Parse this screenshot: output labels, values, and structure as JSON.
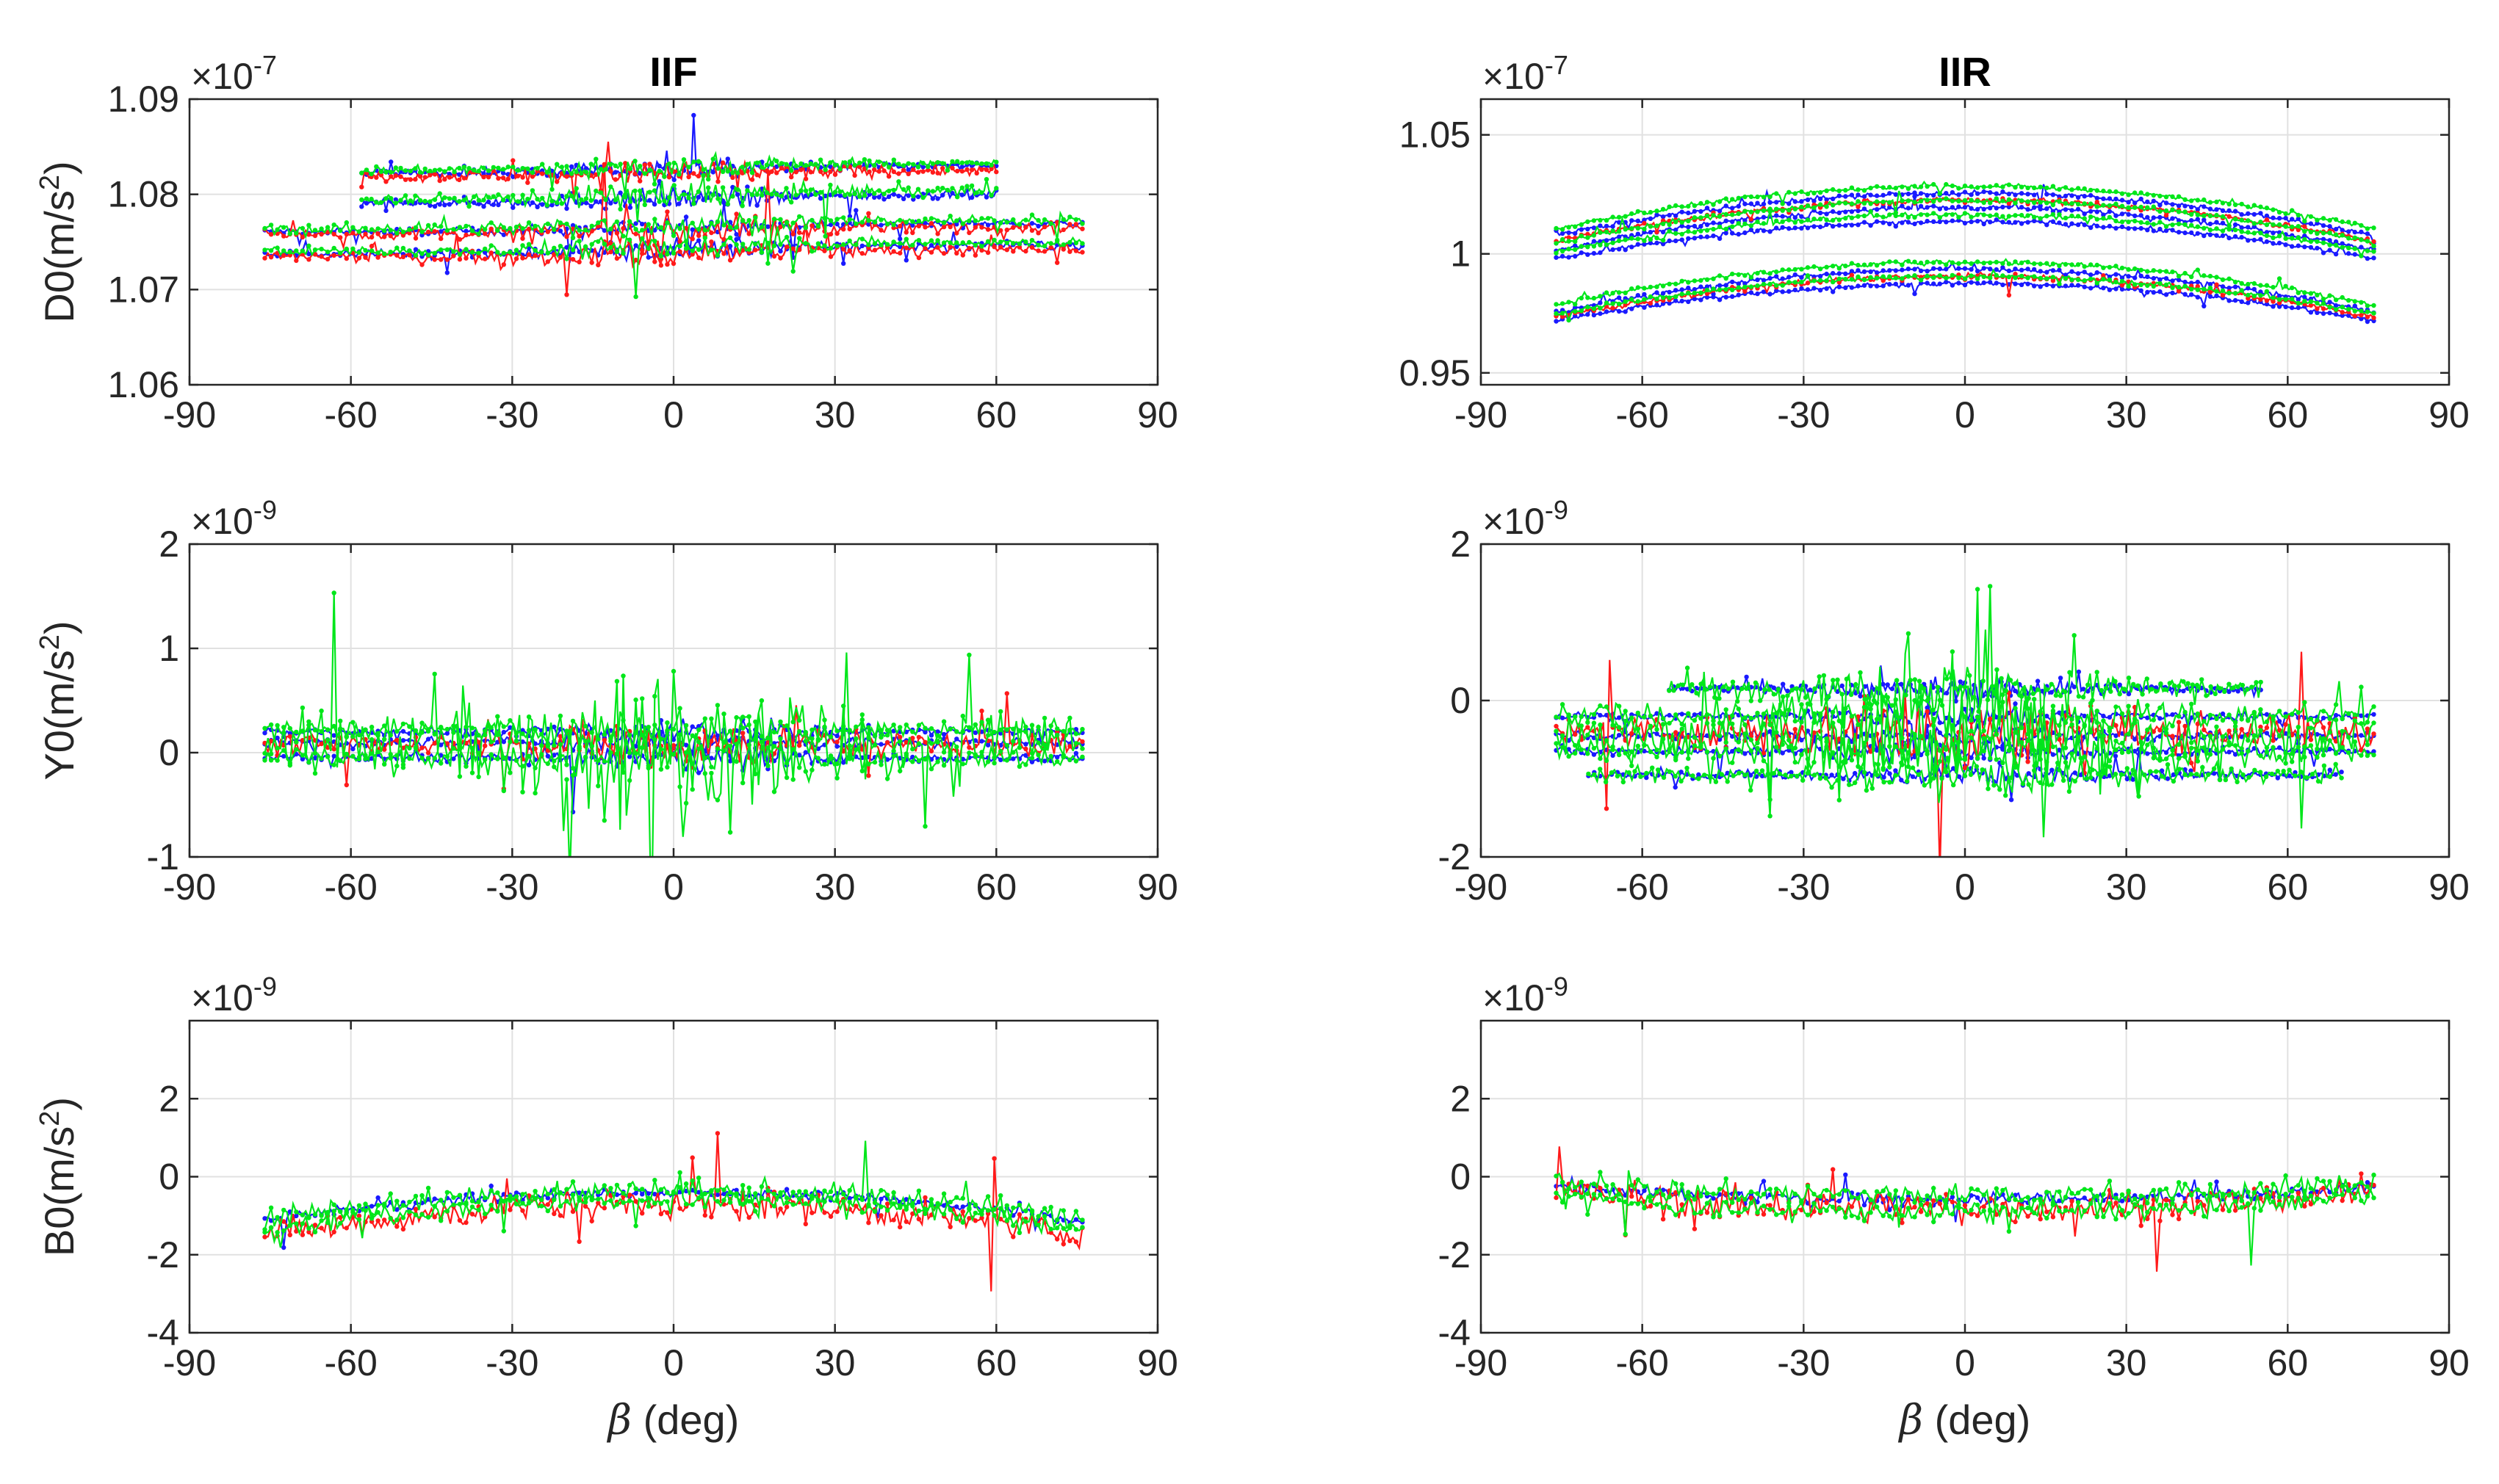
{
  "chart_data": [
    {
      "type": "line",
      "panel": "top-left",
      "title": "IIF",
      "ylabel": "D0(m/s",
      "ylabel_sup": "2",
      "ylabel_close": ")",
      "xlabel": "",
      "exponent": {
        "base": "×10",
        "power": "-7"
      },
      "xlim": [
        -90,
        90
      ],
      "ylim": [
        1.06,
        1.09
      ],
      "xticks": [
        -90,
        -60,
        -30,
        0,
        30,
        60,
        90
      ],
      "xtick_labels": [
        "-90",
        "-60",
        "-30",
        "0",
        "30",
        "60",
        "90"
      ],
      "yticks": [
        1.06,
        1.07,
        1.08,
        1.09
      ],
      "ytick_labels": [
        "1.06",
        "1.07",
        "1.08",
        "1.09"
      ],
      "grid": true,
      "series": [
        {
          "name": "blue",
          "color": "#1a1aff",
          "pattern": "bands",
          "bands": [
            {
              "x": [
                -76,
                76
              ],
              "c": 1.0765,
              "a": 0.0006,
              "noise": 0.0004
            },
            {
              "x": [
                -58,
                60
              ],
              "c": 1.0826,
              "a": 0.0005,
              "noise": 0.0004
            },
            {
              "x": [
                -58,
                60
              ],
              "c": 1.0795,
              "a": 0.0006,
              "noise": 0.0005
            },
            {
              "x": [
                -76,
                76
              ],
              "c": 1.0742,
              "a": 0.0006,
              "noise": 0.0005
            }
          ]
        },
        {
          "name": "red",
          "color": "#ff1a1a",
          "pattern": "bands",
          "bands": [
            {
              "x": [
                -76,
                76
              ],
              "c": 1.0762,
              "a": 0.0005,
              "noise": 0.0007
            },
            {
              "x": [
                -58,
                60
              ],
              "c": 1.0822,
              "a": 0.0004,
              "noise": 0.0006
            },
            {
              "x": [
                -76,
                76
              ],
              "c": 1.0738,
              "a": 0.0005,
              "noise": 0.0007
            }
          ]
        },
        {
          "name": "green",
          "color": "#00e61a",
          "pattern": "bands",
          "bands": [
            {
              "x": [
                -76,
                76
              ],
              "c": 1.0768,
              "a": 0.0006,
              "noise": 0.0006
            },
            {
              "x": [
                -58,
                60
              ],
              "c": 1.0829,
              "a": 0.0005,
              "noise": 0.0005
            },
            {
              "x": [
                -58,
                60
              ],
              "c": 1.0799,
              "a": 0.0006,
              "noise": 0.0006
            },
            {
              "x": [
                -76,
                76
              ],
              "c": 1.0745,
              "a": 0.0006,
              "noise": 0.0006
            }
          ]
        }
      ]
    },
    {
      "type": "line",
      "panel": "top-right",
      "title": "IIR",
      "ylabel": "",
      "ylabel_sup": "",
      "ylabel_close": "",
      "xlabel": "",
      "exponent": {
        "base": "×10",
        "power": "-7"
      },
      "xlim": [
        -90,
        90
      ],
      "ylim": [
        0.945,
        1.065
      ],
      "xticks": [
        -90,
        -60,
        -30,
        0,
        30,
        60,
        90
      ],
      "xtick_labels": [
        "-90",
        "-60",
        "-30",
        "0",
        "30",
        "60",
        "90"
      ],
      "yticks": [
        0.95,
        1.0,
        1.05
      ],
      "ytick_labels": [
        "0.95",
        "1",
        "1.05"
      ],
      "grid": true,
      "series": [
        {
          "name": "blue",
          "color": "#1a1aff",
          "pattern": "arcs",
          "bands": [
            {
              "x": [
                -76,
                76
              ],
              "c": 1.0255,
              "a": -0.025,
              "noise": 0.0012
            },
            {
              "x": [
                -76,
                76
              ],
              "c": 1.0195,
              "a": -0.025,
              "noise": 0.0012
            },
            {
              "x": [
                -76,
                76
              ],
              "c": 1.0135,
              "a": -0.022,
              "noise": 0.0012
            },
            {
              "x": [
                -76,
                76
              ],
              "c": 0.9935,
              "a": -0.025,
              "noise": 0.0012
            },
            {
              "x": [
                -76,
                76
              ],
              "c": 0.9875,
              "a": -0.022,
              "noise": 0.0012
            }
          ]
        },
        {
          "name": "red",
          "color": "#ff1a1a",
          "pattern": "arcs",
          "bands": [
            {
              "x": [
                -76,
                76
              ],
              "c": 1.0225,
              "a": -0.024,
              "noise": 0.0015
            },
            {
              "x": [
                -76,
                76
              ],
              "c": 0.9905,
              "a": -0.024,
              "noise": 0.0015
            }
          ]
        },
        {
          "name": "green",
          "color": "#00e61a",
          "pattern": "arcs",
          "bands": [
            {
              "x": [
                -76,
                76
              ],
              "c": 1.0285,
              "a": -0.025,
              "noise": 0.0012
            },
            {
              "x": [
                -76,
                76
              ],
              "c": 1.0225,
              "a": -0.025,
              "noise": 0.0012
            },
            {
              "x": [
                -76,
                76
              ],
              "c": 1.0165,
              "a": -0.022,
              "noise": 0.0012
            },
            {
              "x": [
                -76,
                76
              ],
              "c": 0.9965,
              "a": -0.025,
              "noise": 0.0012
            },
            {
              "x": [
                -76,
                76
              ],
              "c": 0.9905,
              "a": -0.022,
              "noise": 0.0012
            }
          ]
        }
      ]
    },
    {
      "type": "line",
      "panel": "middle-left",
      "title": "",
      "ylabel": "Y0(m/s",
      "ylabel_sup": "2",
      "ylabel_close": ")",
      "xlabel": "",
      "exponent": {
        "base": "×10",
        "power": "-9"
      },
      "xlim": [
        -90,
        90
      ],
      "ylim": [
        -1,
        2
      ],
      "xticks": [
        -90,
        -60,
        -30,
        0,
        30,
        60,
        90
      ],
      "xtick_labels": [
        "-90",
        "-60",
        "-30",
        "0",
        "30",
        "60",
        "90"
      ],
      "yticks": [
        -1,
        0,
        1,
        2
      ],
      "ytick_labels": [
        "-1",
        "0",
        "1",
        "2"
      ],
      "grid": true,
      "series": [
        {
          "name": "blue",
          "color": "#1a1aff",
          "pattern": "noise",
          "bands": [
            {
              "x": [
                -76,
                76
              ],
              "c": 0.2,
              "a": 0.0,
              "noise": 0.05
            },
            {
              "x": [
                -76,
                76
              ],
              "c": 0.1,
              "a": 0.0,
              "noise": 0.05
            },
            {
              "x": [
                -76,
                76
              ],
              "c": -0.05,
              "a": 0.0,
              "noise": 0.05
            }
          ]
        },
        {
          "name": "red",
          "color": "#ff1a1a",
          "pattern": "noise",
          "bands": [
            {
              "x": [
                -76,
                76
              ],
              "c": 0.08,
              "a": 0.05,
              "noise": 0.12
            }
          ]
        },
        {
          "name": "green",
          "color": "#00e61a",
          "pattern": "noise",
          "bands": [
            {
              "x": [
                -76,
                76
              ],
              "c": 0.22,
              "a": 0.0,
              "noise": 0.1
            },
            {
              "x": [
                -76,
                76
              ],
              "c": 0.1,
              "a": 0.1,
              "noise": 0.35
            },
            {
              "x": [
                -76,
                76
              ],
              "c": -0.05,
              "a": 0.0,
              "noise": 0.12
            }
          ]
        }
      ]
    },
    {
      "type": "line",
      "panel": "middle-right",
      "title": "",
      "ylabel": "",
      "ylabel_sup": "",
      "ylabel_close": "",
      "xlabel": "",
      "exponent": {
        "base": "×10",
        "power": "-9"
      },
      "xlim": [
        -90,
        90
      ],
      "ylim": [
        -2,
        2
      ],
      "xticks": [
        -90,
        -60,
        -30,
        0,
        30,
        60,
        90
      ],
      "xtick_labels": [
        "-90",
        "-60",
        "-30",
        "0",
        "30",
        "60",
        "90"
      ],
      "yticks": [
        -2,
        0,
        2
      ],
      "ytick_labels": [
        "-2",
        "0",
        "2"
      ],
      "grid": true,
      "series": [
        {
          "name": "blue",
          "color": "#1a1aff",
          "pattern": "noise",
          "bands": [
            {
              "x": [
                -55,
                55
              ],
              "c": 0.15,
              "a": 0.0,
              "noise": 0.06
            },
            {
              "x": [
                -76,
                76
              ],
              "c": -0.2,
              "a": 0.0,
              "noise": 0.06
            },
            {
              "x": [
                -76,
                76
              ],
              "c": -0.45,
              "a": 0.0,
              "noise": 0.06
            },
            {
              "x": [
                -76,
                76
              ],
              "c": -0.65,
              "a": 0.0,
              "noise": 0.06
            },
            {
              "x": [
                -70,
                70
              ],
              "c": -0.95,
              "a": 0.0,
              "noise": 0.06
            }
          ]
        },
        {
          "name": "red",
          "color": "#ff1a1a",
          "pattern": "noise",
          "bands": [
            {
              "x": [
                -76,
                76
              ],
              "c": -0.4,
              "a": 0.1,
              "noise": 0.25
            }
          ]
        },
        {
          "name": "green",
          "color": "#00e61a",
          "pattern": "noise",
          "bands": [
            {
              "x": [
                -55,
                55
              ],
              "c": 0.15,
              "a": 0.0,
              "noise": 0.15
            },
            {
              "x": [
                -76,
                76
              ],
              "c": -0.2,
              "a": 0.0,
              "noise": 0.2
            },
            {
              "x": [
                -76,
                76
              ],
              "c": -0.45,
              "a": 0.1,
              "noise": 0.35
            },
            {
              "x": [
                -76,
                76
              ],
              "c": -0.65,
              "a": 0.0,
              "noise": 0.2
            },
            {
              "x": [
                -70,
                70
              ],
              "c": -0.95,
              "a": 0.0,
              "noise": 0.12
            }
          ]
        }
      ]
    },
    {
      "type": "line",
      "panel": "bottom-left",
      "title": "",
      "ylabel": "B0(m/s",
      "ylabel_sup": "2",
      "ylabel_close": ")",
      "xlabel": "(deg)",
      "xlabel_symbol": "β",
      "exponent": {
        "base": "×10",
        "power": "-9"
      },
      "xlim": [
        -90,
        90
      ],
      "ylim": [
        -4,
        4
      ],
      "xticks": [
        -90,
        -60,
        -30,
        0,
        30,
        60,
        90
      ],
      "xtick_labels": [
        "-90",
        "-60",
        "-30",
        "0",
        "30",
        "60",
        "90"
      ],
      "yticks": [
        -4,
        -2,
        0,
        2
      ],
      "ytick_labels": [
        "-4",
        "-2",
        "0",
        "2"
      ],
      "grid": true,
      "series": [
        {
          "name": "blue",
          "color": "#1a1aff",
          "pattern": "arcs",
          "bands": [
            {
              "x": [
                -76,
                76
              ],
              "c": -0.4,
              "a": -1.0,
              "noise": 0.15
            }
          ]
        },
        {
          "name": "red",
          "color": "#ff1a1a",
          "pattern": "arcs",
          "bands": [
            {
              "x": [
                -76,
                76
              ],
              "c": -0.7,
              "a": -1.1,
              "noise": 0.45
            }
          ]
        },
        {
          "name": "green",
          "color": "#00e61a",
          "pattern": "arcs",
          "bands": [
            {
              "x": [
                -76,
                76
              ],
              "c": -0.35,
              "a": -1.0,
              "noise": 0.35
            },
            {
              "x": [
                -76,
                76
              ],
              "c": -0.6,
              "a": -1.0,
              "noise": 0.3
            }
          ]
        }
      ]
    },
    {
      "type": "line",
      "panel": "bottom-right",
      "title": "",
      "ylabel": "",
      "ylabel_sup": "",
      "ylabel_close": "",
      "xlabel": "(deg)",
      "xlabel_symbol": "β",
      "exponent": {
        "base": "×10",
        "power": "-9"
      },
      "xlim": [
        -90,
        90
      ],
      "ylim": [
        -4,
        4
      ],
      "xticks": [
        -90,
        -60,
        -30,
        0,
        30,
        60,
        90
      ],
      "xtick_labels": [
        "-90",
        "-60",
        "-30",
        "0",
        "30",
        "60",
        "90"
      ],
      "yticks": [
        -4,
        -2,
        0,
        2
      ],
      "ytick_labels": [
        "-4",
        "-2",
        "0",
        "2"
      ],
      "grid": true,
      "series": [
        {
          "name": "blue",
          "color": "#1a1aff",
          "pattern": "wave",
          "bands": [
            {
              "x": [
                -76,
                76
              ],
              "c": -0.6,
              "a": 0.7,
              "noise": 0.2
            }
          ]
        },
        {
          "name": "red",
          "color": "#ff1a1a",
          "pattern": "wave",
          "bands": [
            {
              "x": [
                -76,
                76
              ],
              "c": -0.8,
              "a": 0.8,
              "noise": 0.5
            }
          ]
        },
        {
          "name": "green",
          "color": "#00e61a",
          "pattern": "wave",
          "bands": [
            {
              "x": [
                -76,
                76
              ],
              "c": -0.5,
              "a": 0.7,
              "noise": 0.35
            },
            {
              "x": [
                -76,
                76
              ],
              "c": -0.9,
              "a": 0.8,
              "noise": 0.3
            }
          ]
        }
      ]
    }
  ]
}
